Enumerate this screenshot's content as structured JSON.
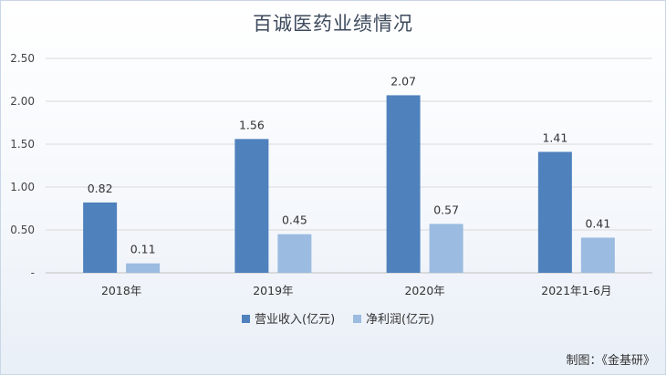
{
  "chart_data": {
    "type": "bar",
    "title": "百诚医药业绩情况",
    "categories": [
      "2018年",
      "2019年",
      "2020年",
      "2021年1-6月"
    ],
    "series": [
      {
        "name": "营业收入(亿元)",
        "values": [
          0.82,
          1.56,
          2.07,
          1.41
        ],
        "color": "#4f81bd"
      },
      {
        "name": "净利润(亿元)",
        "values": [
          0.11,
          0.45,
          0.57,
          0.41
        ],
        "color": "#9bbbe0"
      }
    ],
    "yticks": [
      "-",
      "0.50",
      "1.00",
      "1.50",
      "2.00",
      "2.50"
    ],
    "ylim": [
      0,
      2.5
    ],
    "grid": true,
    "legend": "bottom"
  },
  "footer": {
    "credit": "制图：《金基研》"
  }
}
